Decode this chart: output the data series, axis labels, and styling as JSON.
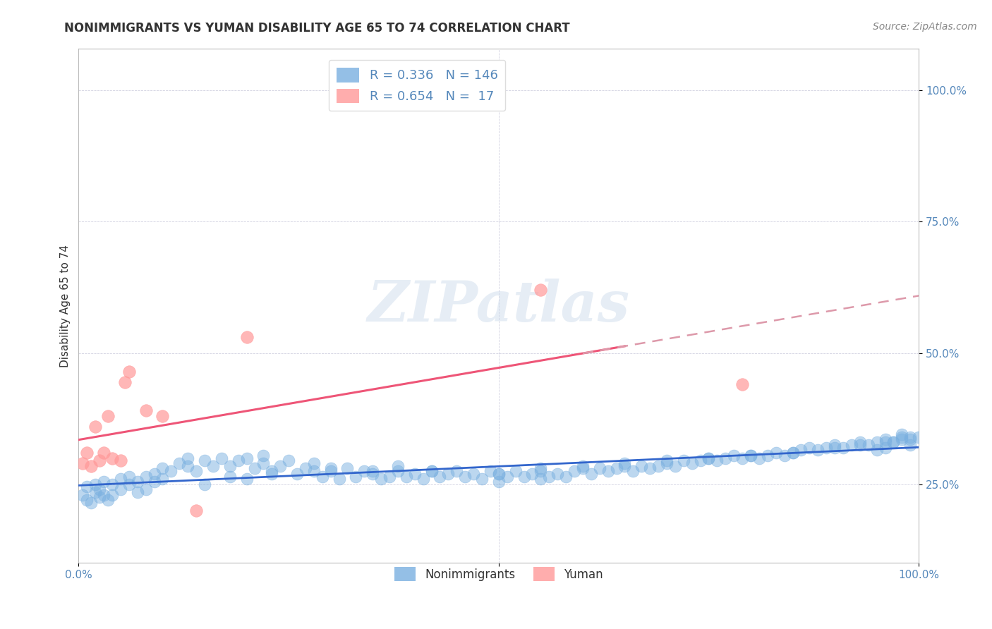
{
  "title": "NONIMMIGRANTS VS YUMAN DISABILITY AGE 65 TO 74 CORRELATION CHART",
  "source_text": "Source: ZipAtlas.com",
  "ylabel": "Disability Age 65 to 74",
  "xlim": [
    0.0,
    1.0
  ],
  "ylim": [
    0.1,
    1.08
  ],
  "yticks": [
    0.25,
    0.5,
    0.75,
    1.0
  ],
  "ytick_labels": [
    "25.0%",
    "50.0%",
    "75.0%",
    "100.0%"
  ],
  "legend_entries": [
    {
      "label": "R = 0.336   N = 146",
      "color": "#7ab0e0"
    },
    {
      "label": "R = 0.654   N =  17",
      "color": "#ff9999"
    }
  ],
  "nonimmigrants_x": [
    0.005,
    0.01,
    0.01,
    0.015,
    0.02,
    0.02,
    0.025,
    0.025,
    0.03,
    0.03,
    0.035,
    0.04,
    0.04,
    0.05,
    0.05,
    0.06,
    0.06,
    0.07,
    0.07,
    0.08,
    0.08,
    0.09,
    0.09,
    0.1,
    0.1,
    0.11,
    0.12,
    0.13,
    0.13,
    0.14,
    0.15,
    0.16,
    0.17,
    0.18,
    0.19,
    0.2,
    0.21,
    0.22,
    0.22,
    0.23,
    0.24,
    0.25,
    0.26,
    0.27,
    0.28,
    0.28,
    0.29,
    0.3,
    0.31,
    0.32,
    0.33,
    0.34,
    0.35,
    0.36,
    0.37,
    0.38,
    0.39,
    0.4,
    0.41,
    0.42,
    0.43,
    0.44,
    0.45,
    0.46,
    0.47,
    0.48,
    0.49,
    0.5,
    0.5,
    0.51,
    0.52,
    0.53,
    0.54,
    0.55,
    0.55,
    0.56,
    0.57,
    0.58,
    0.59,
    0.6,
    0.61,
    0.62,
    0.63,
    0.64,
    0.65,
    0.66,
    0.67,
    0.68,
    0.69,
    0.7,
    0.71,
    0.72,
    0.73,
    0.74,
    0.75,
    0.76,
    0.77,
    0.78,
    0.79,
    0.8,
    0.81,
    0.82,
    0.83,
    0.84,
    0.85,
    0.86,
    0.87,
    0.88,
    0.89,
    0.9,
    0.91,
    0.92,
    0.93,
    0.94,
    0.95,
    0.96,
    0.97,
    0.98,
    0.99,
    1.0,
    0.15,
    0.18,
    0.2,
    0.23,
    0.3,
    0.35,
    0.38,
    0.42,
    0.5,
    0.55,
    0.6,
    0.65,
    0.7,
    0.75,
    0.8,
    0.85,
    0.9,
    0.93,
    0.96,
    0.98,
    0.99,
    0.99,
    0.98,
    0.97,
    0.96,
    0.95
  ],
  "nonimmigrants_y": [
    0.23,
    0.22,
    0.245,
    0.215,
    0.235,
    0.25,
    0.225,
    0.24,
    0.23,
    0.255,
    0.22,
    0.25,
    0.23,
    0.24,
    0.26,
    0.25,
    0.265,
    0.235,
    0.255,
    0.265,
    0.24,
    0.255,
    0.27,
    0.28,
    0.26,
    0.275,
    0.29,
    0.285,
    0.3,
    0.275,
    0.295,
    0.285,
    0.3,
    0.285,
    0.295,
    0.3,
    0.28,
    0.29,
    0.305,
    0.275,
    0.285,
    0.295,
    0.27,
    0.28,
    0.275,
    0.29,
    0.265,
    0.275,
    0.26,
    0.28,
    0.265,
    0.275,
    0.27,
    0.26,
    0.265,
    0.275,
    0.265,
    0.27,
    0.26,
    0.275,
    0.265,
    0.27,
    0.275,
    0.265,
    0.27,
    0.26,
    0.275,
    0.27,
    0.255,
    0.265,
    0.275,
    0.265,
    0.27,
    0.26,
    0.275,
    0.265,
    0.27,
    0.265,
    0.275,
    0.28,
    0.27,
    0.28,
    0.275,
    0.28,
    0.285,
    0.275,
    0.285,
    0.28,
    0.285,
    0.29,
    0.285,
    0.295,
    0.29,
    0.295,
    0.3,
    0.295,
    0.3,
    0.305,
    0.3,
    0.305,
    0.3,
    0.305,
    0.31,
    0.305,
    0.31,
    0.315,
    0.32,
    0.315,
    0.32,
    0.325,
    0.32,
    0.325,
    0.33,
    0.325,
    0.33,
    0.335,
    0.33,
    0.34,
    0.335,
    0.34,
    0.25,
    0.265,
    0.26,
    0.27,
    0.28,
    0.275,
    0.285,
    0.275,
    0.27,
    0.28,
    0.285,
    0.29,
    0.295,
    0.3,
    0.305,
    0.31,
    0.32,
    0.325,
    0.33,
    0.335,
    0.34,
    0.325,
    0.345,
    0.33,
    0.32,
    0.315
  ],
  "yuman_x": [
    0.005,
    0.01,
    0.015,
    0.02,
    0.025,
    0.03,
    0.035,
    0.04,
    0.05,
    0.055,
    0.06,
    0.08,
    0.1,
    0.14,
    0.2,
    0.55,
    0.79
  ],
  "yuman_y": [
    0.29,
    0.31,
    0.285,
    0.36,
    0.295,
    0.31,
    0.38,
    0.3,
    0.295,
    0.445,
    0.465,
    0.39,
    0.38,
    0.2,
    0.53,
    0.62,
    0.44
  ],
  "nonimm_color": "#7ab0e0",
  "yuman_color": "#ff9999",
  "nonimm_line_color": "#3366cc",
  "yuman_line_color": "#ee5577",
  "dashed_line_color": "#dd99aa",
  "background_color": "#ffffff",
  "title_color": "#333333",
  "source_color": "#888888",
  "tick_color": "#5588bb",
  "watermark_text": "ZIPatlas",
  "bottom_legend": [
    "Nonimmigrants",
    "Yuman"
  ],
  "title_fontsize": 12,
  "axis_label_fontsize": 11,
  "tick_fontsize": 11,
  "legend_fontsize": 13,
  "source_fontsize": 10,
  "yuman_line_end_solid": 0.65,
  "yuman_line_start_dash": 0.6
}
